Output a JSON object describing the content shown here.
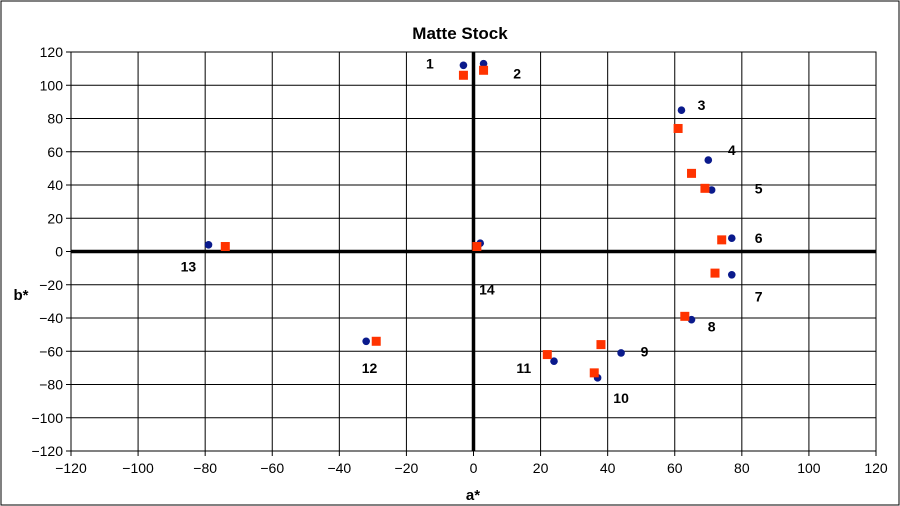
{
  "chart_data": {
    "type": "scatter",
    "title": "Matte Stock",
    "xlabel": "a*",
    "ylabel": "b*",
    "xlim": [
      -120,
      120
    ],
    "ylim": [
      -120,
      120
    ],
    "xticks": [
      -120,
      -100,
      -80,
      -60,
      -40,
      -20,
      0,
      20,
      40,
      60,
      80,
      100,
      120
    ],
    "yticks": [
      -120,
      -100,
      -80,
      -60,
      -40,
      -20,
      0,
      20,
      40,
      60,
      80,
      100,
      120
    ],
    "grid": true,
    "legend": "none",
    "series": [
      {
        "marker": "circle",
        "color": "#0a1a8c",
        "points": [
          {
            "x": -3,
            "y": 112
          },
          {
            "x": 3,
            "y": 113
          },
          {
            "x": 62,
            "y": 85
          },
          {
            "x": 70,
            "y": 55
          },
          {
            "x": 71,
            "y": 37
          },
          {
            "x": 77,
            "y": 8
          },
          {
            "x": 77,
            "y": -14
          },
          {
            "x": 65,
            "y": -41
          },
          {
            "x": 44,
            "y": -61
          },
          {
            "x": 37,
            "y": -76
          },
          {
            "x": 24,
            "y": -66
          },
          {
            "x": -32,
            "y": -54
          },
          {
            "x": -79,
            "y": 4
          },
          {
            "x": 2,
            "y": 5
          }
        ]
      },
      {
        "marker": "square",
        "color": "#ff3300",
        "points": [
          {
            "x": -3,
            "y": 106
          },
          {
            "x": 3,
            "y": 109
          },
          {
            "x": 61,
            "y": 74
          },
          {
            "x": 65,
            "y": 47
          },
          {
            "x": 69,
            "y": 38
          },
          {
            "x": 74,
            "y": 7
          },
          {
            "x": 72,
            "y": -13
          },
          {
            "x": 63,
            "y": -39
          },
          {
            "x": 38,
            "y": -56
          },
          {
            "x": 36,
            "y": -73
          },
          {
            "x": 22,
            "y": -62
          },
          {
            "x": -29,
            "y": -54
          },
          {
            "x": -74,
            "y": 3
          },
          {
            "x": 1,
            "y": 3
          }
        ]
      }
    ],
    "annotations": [
      {
        "text": "1",
        "x": -13,
        "y": 113
      },
      {
        "text": "2",
        "x": 13,
        "y": 107
      },
      {
        "text": "3",
        "x": 68,
        "y": 88
      },
      {
        "text": "4",
        "x": 77,
        "y": 61
      },
      {
        "text": "5",
        "x": 85,
        "y": 38
      },
      {
        "text": "6",
        "x": 85,
        "y": 8
      },
      {
        "text": "7",
        "x": 85,
        "y": -27
      },
      {
        "text": "8",
        "x": 71,
        "y": -45
      },
      {
        "text": "9",
        "x": 51,
        "y": -60
      },
      {
        "text": "10",
        "x": 44,
        "y": -88
      },
      {
        "text": "11",
        "x": 15,
        "y": -70
      },
      {
        "text": "12",
        "x": -31,
        "y": -70
      },
      {
        "text": "13",
        "x": -85,
        "y": -9
      },
      {
        "text": "14",
        "x": 4,
        "y": -23
      }
    ]
  }
}
